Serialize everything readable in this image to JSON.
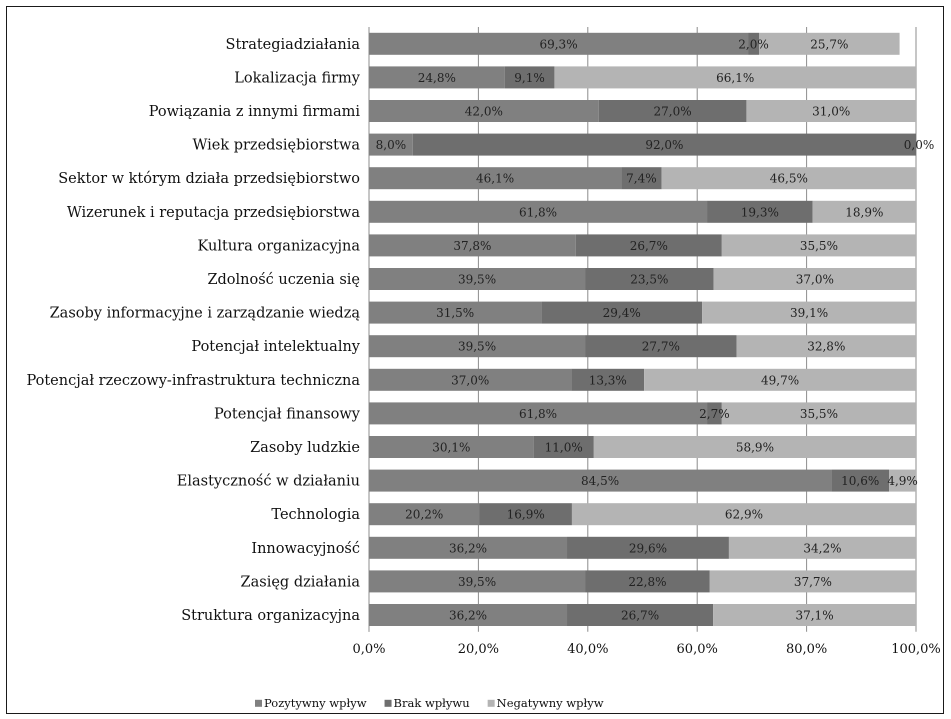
{
  "chart_data": {
    "type": "bar",
    "orientation": "horizontal",
    "stacked": true,
    "categories": [
      "Strategiadziałania",
      "Lokalizacja firmy",
      "Powiązania z innymi firmami",
      "Wiek przedsiębiorstwa",
      "Sektor w którym działa przedsiębiorstwo",
      "Wizerunek i reputacja przedsiębiorstwa",
      "Kultura organizacyjna",
      "Zdolność uczenia się",
      "Zasoby informacyjne i zarządzanie wiedzą",
      "Potencjał intelektualny",
      "Potencjał rzeczowy-infrastruktura techniczna",
      "Potencjał finansowy",
      "Zasoby ludzkie",
      "Elastyczność w działaniu",
      "Technologia",
      "Innowacyjność",
      "Zasięg działania",
      "Struktura organizacyjna"
    ],
    "series": [
      {
        "name": "Pozytywny wpływ",
        "color": "#808080",
        "values": [
          69.3,
          24.8,
          42.0,
          8.0,
          46.1,
          61.8,
          37.8,
          39.5,
          31.5,
          39.5,
          37.0,
          61.8,
          30.1,
          84.5,
          20.2,
          36.2,
          39.5,
          36.2
        ],
        "labels": [
          "69,3%",
          "24,8%",
          "42,0%",
          "8,0%",
          "46,1%",
          "61,8%",
          "37,8%",
          "39,5%",
          "31,5%",
          "39,5%",
          "37,0%",
          "61,8%",
          "30,1%",
          "84,5%",
          "20,2%",
          "36,2%",
          "39,5%",
          "36,2%"
        ]
      },
      {
        "name": "Brak wpływu",
        "color": "#6e6e6e",
        "values": [
          2.0,
          9.1,
          27.0,
          92.0,
          7.4,
          19.3,
          26.7,
          23.5,
          29.4,
          27.7,
          13.3,
          2.7,
          11.0,
          10.6,
          16.9,
          29.6,
          22.8,
          26.7
        ],
        "labels": [
          "2,0%",
          "9,1%",
          "27,0%",
          "92,0%",
          "7,4%",
          "19,3%",
          "26,7%",
          "23,5%",
          "29,4%",
          "27,7%",
          "13,3%",
          "2,7%",
          "11,0%",
          "10,6%",
          "16,9%",
          "29,6%",
          "22,8%",
          "26,7%"
        ]
      },
      {
        "name": "Negatywny wpływ",
        "color": "#b4b4b4",
        "values": [
          25.7,
          66.1,
          31.0,
          0.0,
          46.5,
          18.9,
          35.5,
          37.0,
          39.1,
          32.8,
          49.7,
          35.5,
          58.9,
          4.9,
          62.9,
          34.2,
          37.7,
          37.1
        ],
        "labels": [
          "25,7%",
          "66,1%",
          "31,0%",
          "0,0%",
          "46,5%",
          "18,9%",
          "35,5%",
          "37,0%",
          "39,1%",
          "32,8%",
          "49,7%",
          "35,5%",
          "58,9%",
          "4,9%",
          "62,9%",
          "34,2%",
          "37,7%",
          "37,1%"
        ]
      }
    ],
    "xlim": [
      0,
      100
    ],
    "xticks": [
      "0,0%",
      "20,0%",
      "40,0%",
      "60,0%",
      "80,0%",
      "100,0%"
    ],
    "grid": true,
    "legend_position": "bottom"
  }
}
